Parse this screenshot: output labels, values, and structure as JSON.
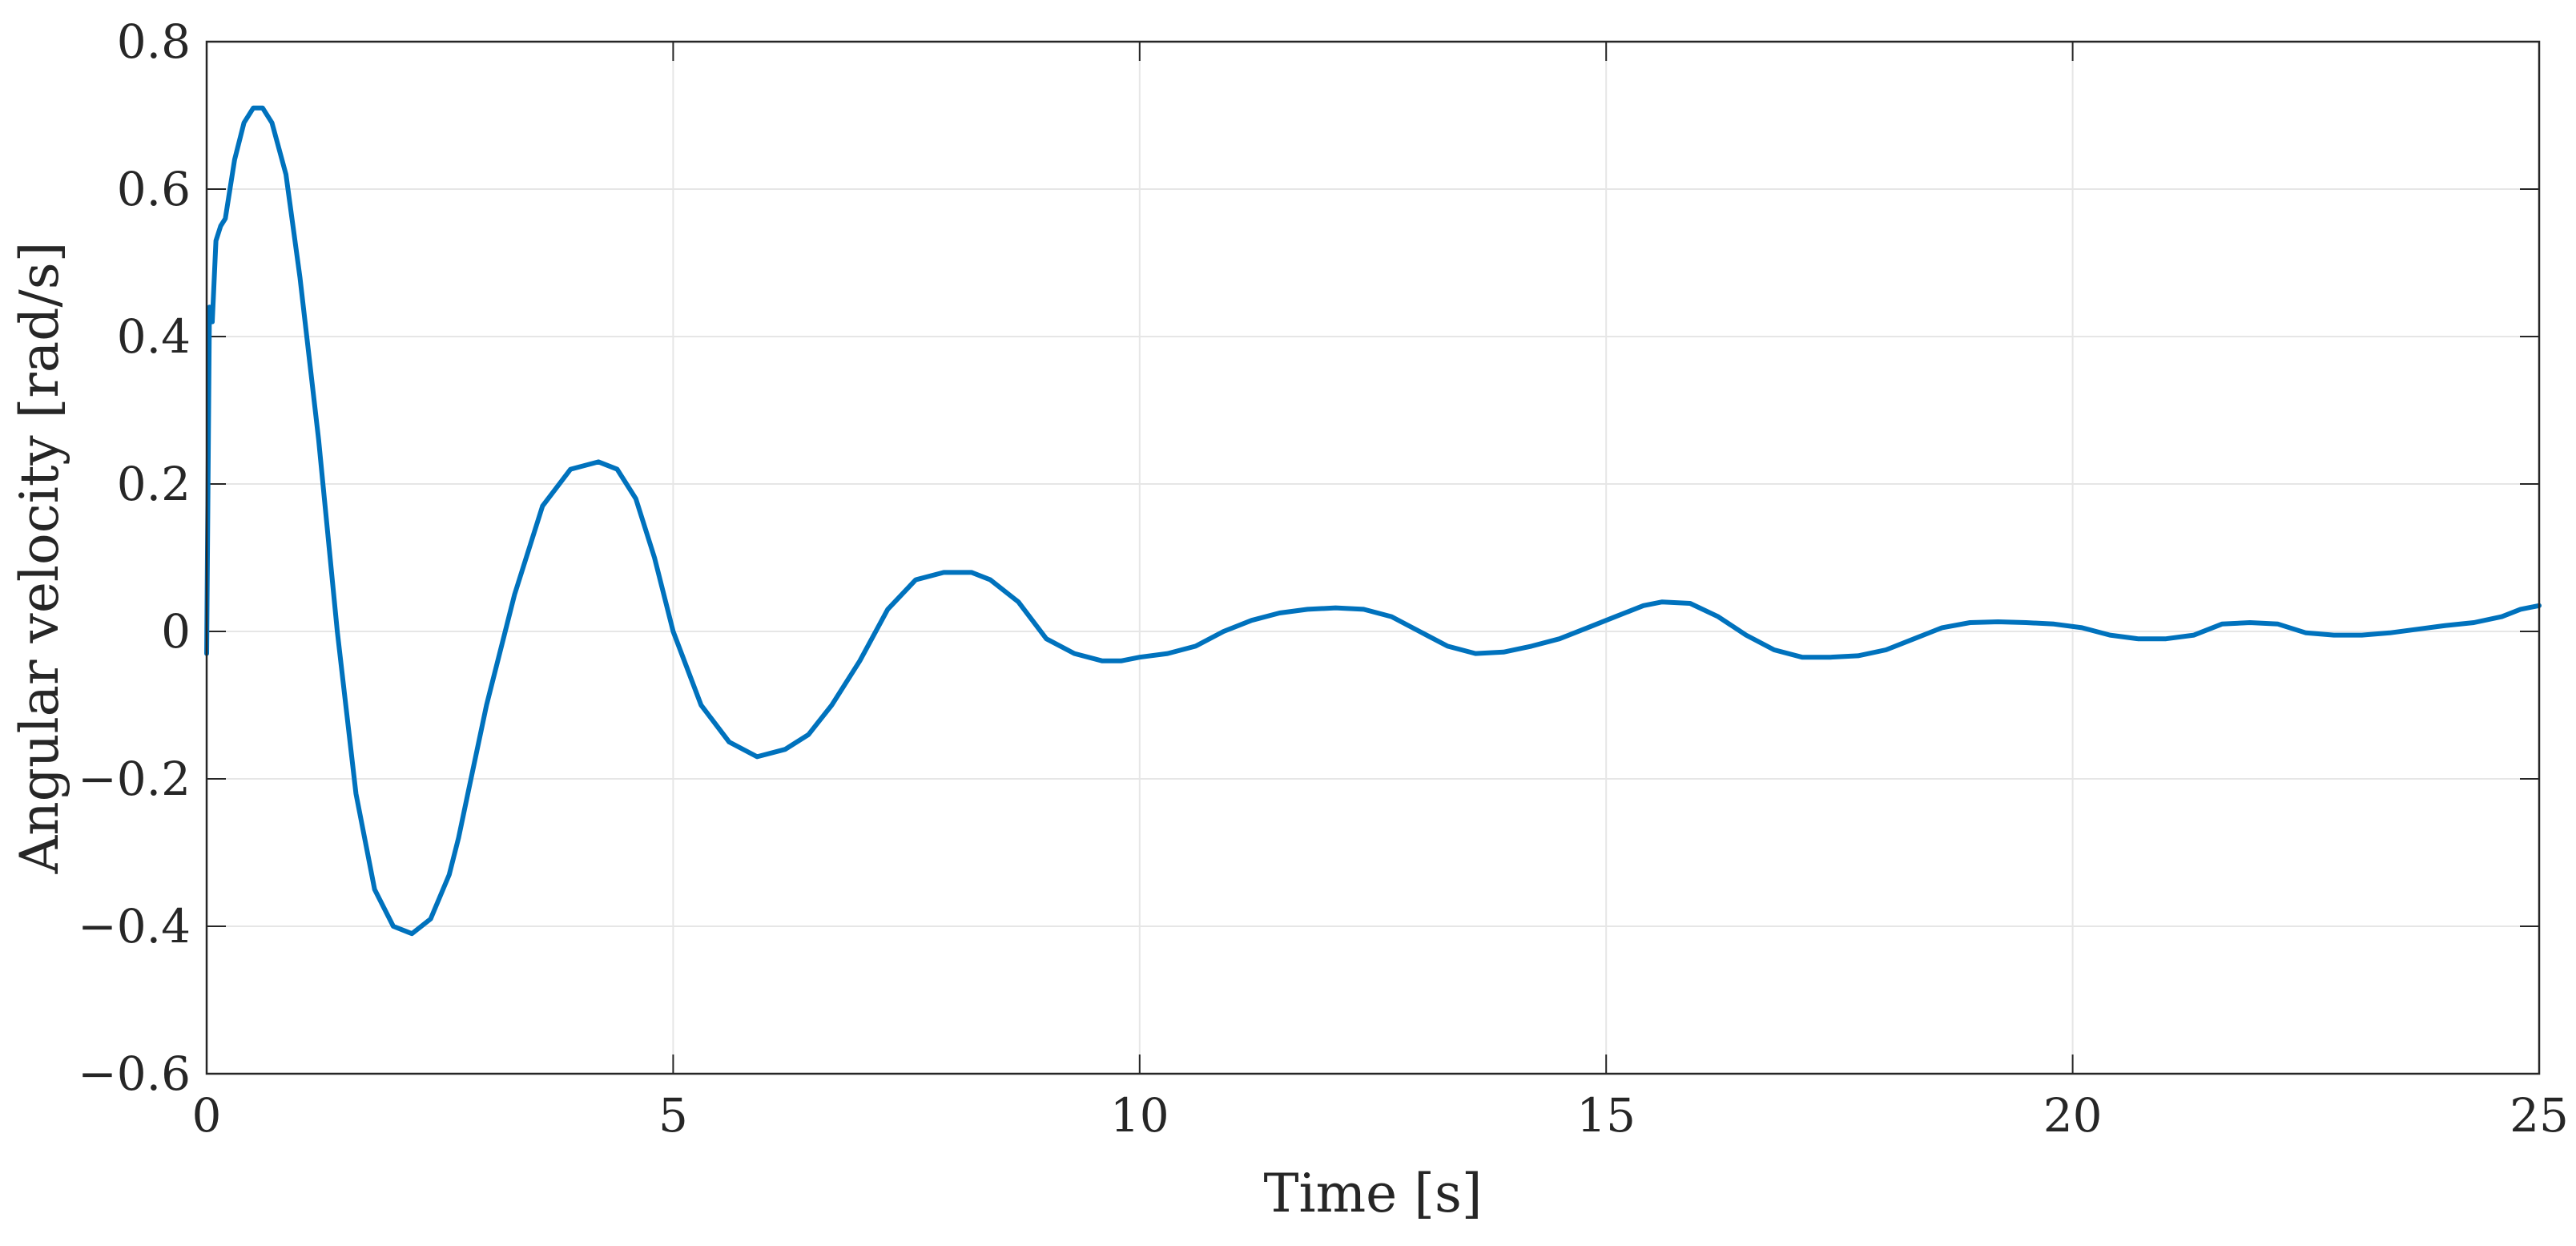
{
  "chart_data": {
    "type": "line",
    "xlabel": "Time [s]",
    "ylabel": "Angular velocity [rad/s]",
    "xlim": [
      0,
      25
    ],
    "ylim": [
      -0.6,
      0.8
    ],
    "xticks": [
      0,
      5,
      10,
      15,
      20,
      25
    ],
    "xtick_labels": [
      "0",
      "5",
      "10",
      "15",
      "20",
      "25"
    ],
    "yticks": [
      -0.6,
      -0.4,
      -0.2,
      0,
      0.2,
      0.4,
      0.6,
      0.8
    ],
    "ytick_labels": [
      "−0.6",
      "−0.4",
      "−0.2",
      "0",
      "0.2",
      "0.4",
      "0.6",
      "0.8"
    ],
    "grid": true,
    "series_color": "#0072BD",
    "series": [
      {
        "x": [
          0,
          0.03,
          0.06,
          0.1,
          0.15,
          0.2,
          0.25,
          0.3,
          0.4,
          0.5,
          0.6,
          0.7,
          0.85,
          1.0,
          1.2,
          1.4,
          1.6,
          1.8,
          2.0,
          2.2,
          2.4,
          2.6,
          2.7,
          2.8,
          3.0,
          3.3,
          3.6,
          3.9,
          4.2,
          4.4,
          4.6,
          4.8,
          5.0,
          5.3,
          5.6,
          5.9,
          6.2,
          6.45,
          6.7,
          7.0,
          7.3,
          7.6,
          7.9,
          8.2,
          8.4,
          8.7,
          9.0,
          9.3,
          9.6,
          9.8,
          10.0,
          10.3,
          10.6,
          10.9,
          11.2,
          11.5,
          11.8,
          12.1,
          12.4,
          12.7,
          13.0,
          13.3,
          13.6,
          13.9,
          14.2,
          14.5,
          14.8,
          15.1,
          15.4,
          15.6,
          15.9,
          16.2,
          16.5,
          16.8,
          17.1,
          17.4,
          17.7,
          18.0,
          18.3,
          18.6,
          18.9,
          19.2,
          19.5,
          19.8,
          20.1,
          20.4,
          20.7,
          21.0,
          21.3,
          21.6,
          21.9,
          22.2,
          22.5,
          22.8,
          23.1,
          23.4,
          23.7,
          24.0,
          24.3,
          24.6,
          24.8,
          25.0
        ],
        "y": [
          -0.03,
          0.44,
          0.42,
          0.53,
          0.55,
          0.56,
          0.6,
          0.64,
          0.69,
          0.71,
          0.71,
          0.69,
          0.62,
          0.48,
          0.26,
          0.0,
          -0.22,
          -0.35,
          -0.4,
          -0.41,
          -0.39,
          -0.33,
          -0.28,
          -0.22,
          -0.1,
          0.05,
          0.17,
          0.22,
          0.23,
          0.22,
          0.18,
          0.1,
          0.0,
          -0.1,
          -0.15,
          -0.17,
          -0.16,
          -0.14,
          -0.1,
          -0.04,
          0.03,
          0.07,
          0.08,
          0.08,
          0.07,
          0.04,
          -0.01,
          -0.03,
          -0.04,
          -0.04,
          -0.035,
          -0.03,
          -0.02,
          0.0,
          0.015,
          0.025,
          0.03,
          0.032,
          0.03,
          0.02,
          0.0,
          -0.02,
          -0.03,
          -0.028,
          -0.02,
          -0.01,
          0.005,
          0.02,
          0.035,
          0.04,
          0.038,
          0.02,
          -0.005,
          -0.025,
          -0.035,
          -0.035,
          -0.033,
          -0.025,
          -0.01,
          0.005,
          0.012,
          0.013,
          0.012,
          0.01,
          0.005,
          -0.005,
          -0.01,
          -0.01,
          -0.005,
          0.01,
          0.012,
          0.01,
          -0.002,
          -0.005,
          -0.005,
          -0.002,
          0.003,
          0.008,
          0.012,
          0.02,
          0.03,
          0.035
        ]
      }
    ]
  }
}
